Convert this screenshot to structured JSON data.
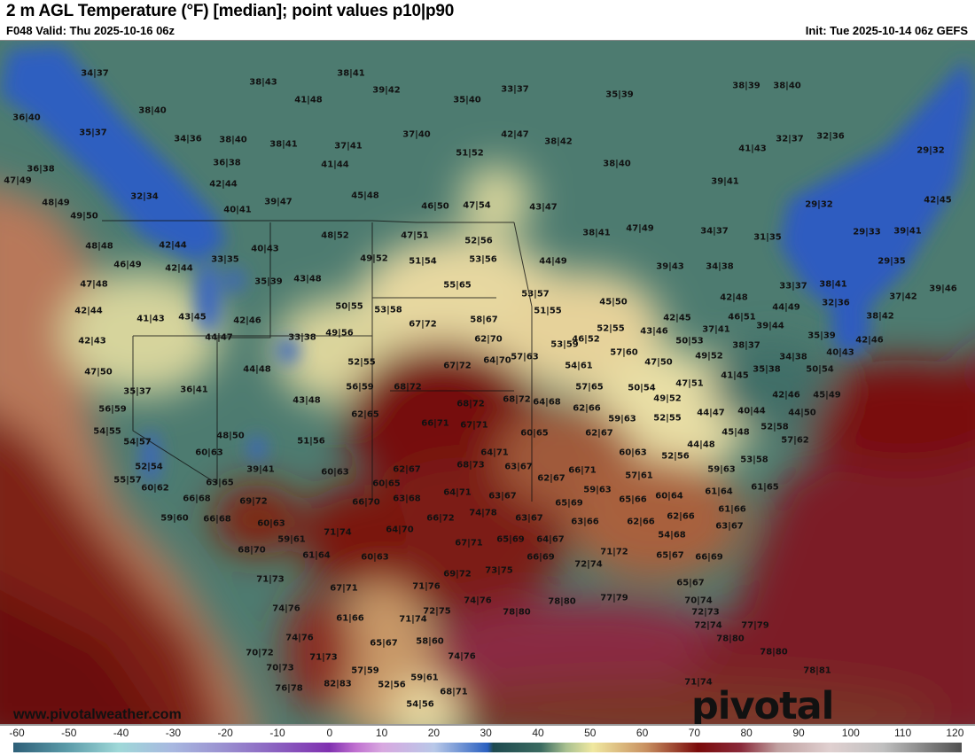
{
  "header": {
    "title": "2 m AGL Temperature (°F) [median]; point values p10|p90",
    "valid": "F048 Valid: Thu 2025-10-16 06z",
    "init": "Init: Tue 2025-10-14 06z GEFS"
  },
  "branding": {
    "site_url": "www.pivotalweather.com",
    "logo": "pivotal weather"
  },
  "colorbar": {
    "ticks": [
      "-60",
      "-50",
      "-40",
      "-30",
      "-20",
      "-10",
      "0",
      "10",
      "20",
      "30",
      "40",
      "50",
      "60",
      "70",
      "80",
      "90",
      "100",
      "110",
      "120"
    ],
    "colors": {
      "cold": "#2a60c0",
      "cool": "#3a6a60",
      "mild": "#f0e8a0",
      "warm": "#7a0a0a",
      "hot": "#8a2a3a"
    }
  },
  "map": {
    "points": [
      "34|37",
      "38|43",
      "41|48",
      "38|41",
      "39|42",
      "35|40",
      "33|37",
      "35|39",
      "38|39",
      "38|40",
      "36|40",
      "38|40",
      "35|37",
      "34|36",
      "38|40",
      "38|41",
      "37|41",
      "37|40",
      "42|47",
      "38|42",
      "51|52",
      "41|43",
      "32|37",
      "32|36",
      "29|32",
      "36|38",
      "36|38",
      "41|44",
      "38|40",
      "47|49",
      "42|44",
      "45|48",
      "39|41",
      "32|34",
      "48|49",
      "40|41",
      "39|47",
      "46|50",
      "47|54",
      "43|47",
      "29|32",
      "42|45",
      "49|50",
      "42|44",
      "48|48",
      "48|52",
      "47|51",
      "52|56",
      "38|41",
      "47|49",
      "34|37",
      "31|35",
      "29|33",
      "39|41",
      "46|49",
      "42|44",
      "33|35",
      "40|43",
      "49|52",
      "51|54",
      "53|56",
      "44|49",
      "39|43",
      "34|38",
      "29|35",
      "47|48",
      "35|39",
      "43|48",
      "55|65",
      "53|57",
      "42|48",
      "33|37",
      "38|41",
      "37|42",
      "39|46",
      "42|44",
      "41|43",
      "43|45",
      "50|55",
      "53|58",
      "51|55",
      "45|50",
      "42|45",
      "46|51",
      "44|49",
      "32|36",
      "38|42",
      "42|46",
      "67|72",
      "58|67",
      "52|55",
      "43|46",
      "37|41",
      "39|44",
      "42|43",
      "44|47",
      "33|38",
      "49|56",
      "62|70",
      "57|63",
      "53|59",
      "46|52",
      "57|60",
      "50|53",
      "38|37",
      "35|39",
      "42|46",
      "47|50",
      "44|48",
      "52|55",
      "67|72",
      "64|70",
      "49|52",
      "34|38",
      "40|43",
      "54|61",
      "35|37",
      "36|41",
      "68|72",
      "56|59",
      "57|65",
      "50|54",
      "47|50",
      "47|51",
      "41|45",
      "35|38",
      "50|54",
      "43|48",
      "68|72",
      "68|72",
      "64|68",
      "62|66",
      "49|52",
      "42|46",
      "45|49",
      "56|59",
      "62|65",
      "66|71",
      "67|71",
      "44|47",
      "40|44",
      "44|50",
      "59|63",
      "52|55",
      "54|55",
      "54|57",
      "48|50",
      "51|56",
      "60|65",
      "62|67",
      "45|48",
      "52|58",
      "57|62",
      "44|48",
      "60|63",
      "64|71",
      "60|63",
      "52|56",
      "53|58",
      "52|54",
      "39|41",
      "60|63",
      "62|67",
      "68|73",
      "63|67",
      "66|71",
      "57|61",
      "59|63",
      "62|67",
      "55|57",
      "63|65",
      "60|65",
      "59|63",
      "60|64",
      "61|64",
      "61|65",
      "60|62",
      "66|68",
      "69|72",
      "63|68",
      "64|71",
      "63|67",
      "66|70",
      "65|69",
      "65|66",
      "61|66",
      "74|78",
      "59|60",
      "66|68",
      "60|63",
      "63|66",
      "62|66",
      "62|66",
      "63|67",
      "63|67",
      "64|70",
      "71|74",
      "66|72",
      "59|61",
      "65|69",
      "64|67",
      "67|71",
      "54|68",
      "68|70",
      "61|64",
      "60|63",
      "71|72",
      "65|67",
      "66|69",
      "73|75",
      "66|69",
      "72|74",
      "69|72",
      "71|73",
      "67|71",
      "71|76",
      "65|67",
      "74|76",
      "72|75",
      "74|76",
      "78|80",
      "78|80",
      "77|79",
      "70|74",
      "61|66",
      "71|74",
      "72|73",
      "72|74",
      "77|79",
      "74|76",
      "65|67",
      "58|60",
      "74|76",
      "78|80",
      "70|72",
      "71|73",
      "78|80",
      "70|73",
      "57|59",
      "59|61",
      "76|78",
      "82|83",
      "52|56",
      "68|71",
      "78|81",
      "71|74",
      "54|56"
    ]
  }
}
